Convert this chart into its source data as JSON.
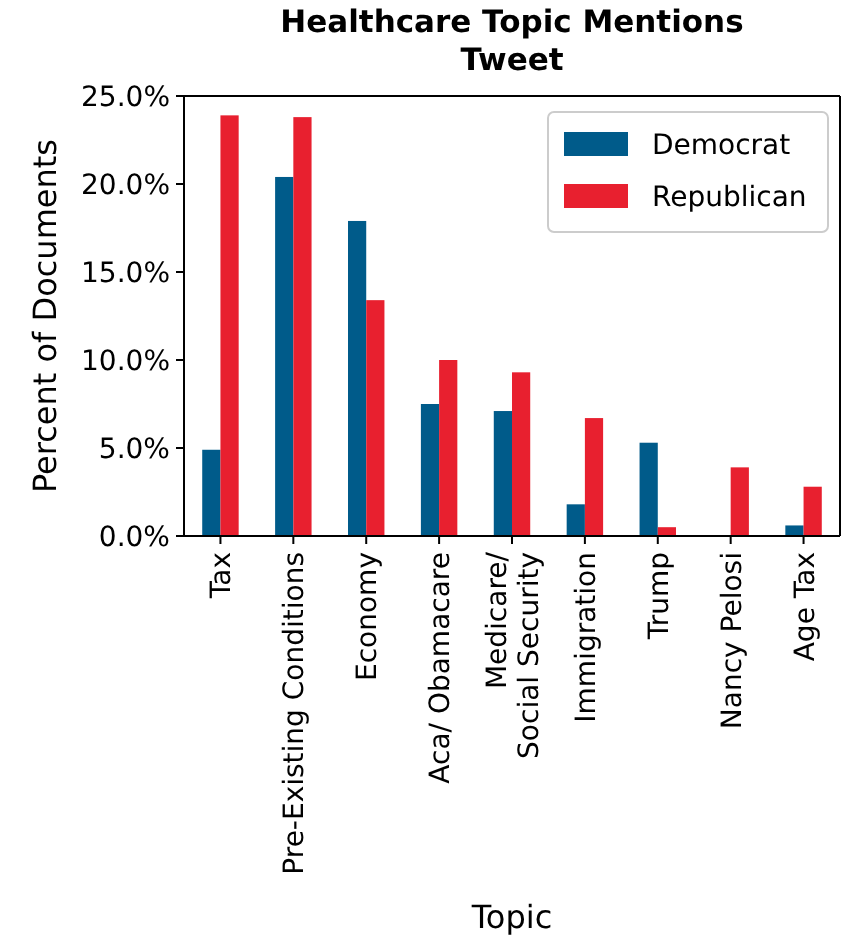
{
  "chart_data": {
    "type": "bar",
    "title": "Healthcare Topic Mentions\nTweet",
    "xlabel": "Topic",
    "ylabel": "Percent of Documents",
    "categories": [
      "Tax",
      "Pre-Existing Conditions",
      "Economy",
      "Aca/ Obamacare",
      "Medicare/\nSocial Security",
      "Immigration",
      "Trump",
      "Nancy Pelosi",
      "Age Tax"
    ],
    "series": [
      {
        "name": "Democrat",
        "color": "#005b8a",
        "values": [
          4.9,
          20.4,
          17.9,
          7.5,
          7.1,
          1.8,
          5.3,
          0,
          0.6
        ]
      },
      {
        "name": "Republican",
        "color": "#e8202f",
        "values": [
          23.9,
          23.8,
          13.4,
          10.0,
          9.3,
          6.7,
          0.5,
          3.9,
          2.8
        ]
      }
    ],
    "ylim": [
      0,
      25
    ],
    "yticks": [
      {
        "value": 0,
        "label": "0.0%"
      },
      {
        "value": 5,
        "label": "5.0%"
      },
      {
        "value": 10,
        "label": "10.0%"
      },
      {
        "value": 15,
        "label": "15.0%"
      },
      {
        "value": 20,
        "label": "20.0%"
      },
      {
        "value": 25,
        "label": "25.0%"
      }
    ],
    "legend": "top right"
  }
}
